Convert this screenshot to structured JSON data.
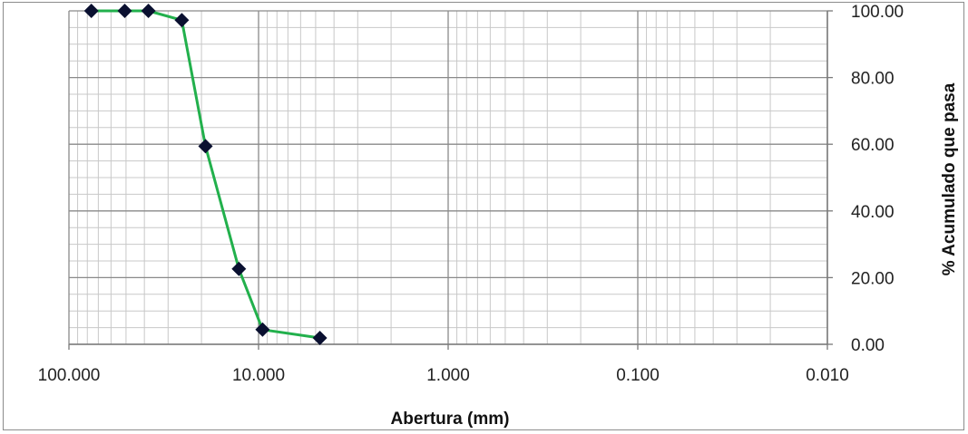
{
  "chart_data": {
    "type": "scatter",
    "title": "",
    "xlabel": "Abertura (mm)",
    "ylabel": "% Acumulado que pasa",
    "x_scale": "log",
    "x_reversed": true,
    "xlim": [
      100,
      0.01
    ],
    "ylim": [
      0,
      100
    ],
    "x_tick_values": [
      100,
      10,
      1,
      0.1,
      0.01
    ],
    "x_tick_labels": [
      "100.000",
      "10.000",
      "1.000",
      "0.100",
      "0.010"
    ],
    "y_tick_values": [
      0,
      20,
      40,
      60,
      80,
      100
    ],
    "y_tick_labels": [
      "0.00",
      "20.00",
      "40.00",
      "60.00",
      "80.00",
      "100.00"
    ],
    "y_axis_position": "right",
    "grid": true,
    "legend": "none",
    "series": [
      {
        "x": [
          76.2,
          50.8,
          38.1,
          25.4,
          19.05,
          12.7,
          9.525,
          4.75
        ],
        "y": [
          100,
          100,
          100,
          97.2,
          59.4,
          22.6,
          4.4,
          1.9
        ],
        "line_color": "#22b04c",
        "marker": "diamond",
        "marker_color": "#0a1030"
      }
    ]
  }
}
